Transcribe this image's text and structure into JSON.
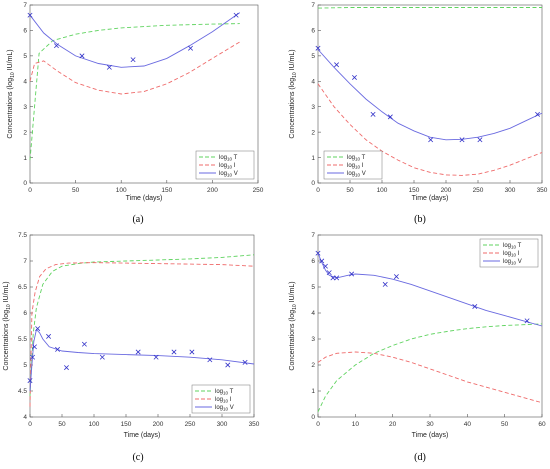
{
  "figure": {
    "panel_labels": [
      "(a)",
      "(b)",
      "(c)",
      "(d)"
    ]
  },
  "chart_data": [
    {
      "type": "line",
      "panel": "(a)",
      "xlabel": "Time (days)",
      "ylabel": "Concentrations (log10 IU/mL)",
      "ylabel_main": "Concentrations (log",
      "ylabel_sub": "10",
      "ylabel_tail": " IU/mL)",
      "xlim": [
        0,
        250
      ],
      "ylim": [
        0,
        7
      ],
      "xticks": [
        0,
        50,
        100,
        150,
        200,
        250
      ],
      "yticks": [
        0,
        1,
        2,
        3,
        4,
        5,
        6,
        7
      ],
      "legend_position": "bottom-right",
      "series": [
        {
          "name": "log10 T",
          "name_main": "log",
          "name_sub": "10",
          "name_tail": " T",
          "style": "dashed",
          "color": "#5fd35f",
          "x": [
            0,
            10,
            25,
            50,
            75,
            100,
            150,
            200,
            230
          ],
          "y": [
            0.9,
            5.1,
            5.6,
            5.85,
            6.0,
            6.1,
            6.2,
            6.25,
            6.27
          ]
        },
        {
          "name": "log10 I",
          "name_main": "log",
          "name_sub": "10",
          "name_tail": " I",
          "style": "dashed",
          "color": "#ef6b6b",
          "x": [
            0,
            5,
            15,
            30,
            50,
            75,
            100,
            125,
            150,
            175,
            200,
            230
          ],
          "y": [
            4.0,
            4.7,
            4.8,
            4.4,
            3.95,
            3.65,
            3.5,
            3.6,
            3.9,
            4.35,
            4.9,
            5.55
          ]
        },
        {
          "name": "log10 V",
          "name_main": "log",
          "name_sub": "10",
          "name_tail": " V",
          "style": "solid",
          "color": "#6a6ae0",
          "x": [
            0,
            15,
            30,
            50,
            75,
            100,
            125,
            150,
            175,
            200,
            230
          ],
          "y": [
            6.6,
            5.9,
            5.45,
            5.0,
            4.7,
            4.55,
            4.6,
            4.9,
            5.4,
            5.95,
            6.7
          ]
        },
        {
          "name": "data",
          "style": "marker",
          "color": "#3232c8",
          "x": [
            0,
            29,
            57,
            87,
            113,
            176,
            226
          ],
          "y": [
            6.6,
            5.4,
            5.0,
            4.55,
            4.85,
            5.3,
            6.6
          ]
        }
      ]
    },
    {
      "type": "line",
      "panel": "(b)",
      "xlabel": "Time (days)",
      "ylabel": "Concentrations (log10 IU/mL)",
      "ylabel_main": "Concentrations (log",
      "ylabel_sub": "10",
      "ylabel_tail": " IU/mL)",
      "xlim": [
        0,
        350
      ],
      "ylim": [
        0,
        7
      ],
      "xticks": [
        0,
        50,
        100,
        150,
        200,
        250,
        300,
        350
      ],
      "yticks": [
        0,
        1,
        2,
        3,
        4,
        5,
        6,
        7
      ],
      "legend_position": "bottom-left",
      "series": [
        {
          "name": "log10 T",
          "name_main": "log",
          "name_sub": "10",
          "name_tail": " T",
          "style": "dashed",
          "color": "#5fd35f",
          "x": [
            0,
            50,
            100,
            150,
            200,
            250,
            300,
            350
          ],
          "y": [
            6.88,
            6.9,
            6.9,
            6.9,
            6.9,
            6.9,
            6.9,
            6.9
          ]
        },
        {
          "name": "log10 I",
          "name_main": "log",
          "name_sub": "10",
          "name_tail": " I",
          "style": "dashed",
          "color": "#ef6b6b",
          "x": [
            0,
            25,
            50,
            75,
            100,
            125,
            150,
            175,
            200,
            225,
            250,
            275,
            300,
            325,
            350
          ],
          "y": [
            3.9,
            3.0,
            2.3,
            1.7,
            1.25,
            0.9,
            0.6,
            0.42,
            0.32,
            0.3,
            0.35,
            0.5,
            0.7,
            0.95,
            1.2
          ]
        },
        {
          "name": "log10 V",
          "name_main": "log",
          "name_sub": "10",
          "name_tail": " V",
          "style": "solid",
          "color": "#6a6ae0",
          "x": [
            0,
            25,
            50,
            75,
            100,
            125,
            150,
            175,
            200,
            225,
            250,
            275,
            300,
            325,
            350
          ],
          "y": [
            5.25,
            4.55,
            3.9,
            3.3,
            2.8,
            2.35,
            2.05,
            1.8,
            1.7,
            1.72,
            1.8,
            1.95,
            2.15,
            2.45,
            2.75
          ]
        },
        {
          "name": "data",
          "style": "marker",
          "color": "#3232c8",
          "x": [
            0,
            29,
            57,
            86,
            113,
            176,
            225,
            253,
            343
          ],
          "y": [
            5.3,
            4.65,
            4.15,
            2.7,
            2.6,
            1.7,
            1.7,
            1.7,
            2.7
          ]
        }
      ]
    },
    {
      "type": "line",
      "panel": "(c)",
      "xlabel": "Time (days)",
      "ylabel": "Concentrations (log10 IU/mL)",
      "ylabel_main": "Concentrations (log",
      "ylabel_sub": "10",
      "ylabel_tail": " IU/mL)",
      "xlim": [
        0,
        350
      ],
      "ylim": [
        4,
        7.5
      ],
      "xticks": [
        0,
        50,
        100,
        150,
        200,
        250,
        300,
        350
      ],
      "yticks": [
        4,
        4.5,
        5,
        5.5,
        6,
        6.5,
        7,
        7.5
      ],
      "legend_position": "bottom-right",
      "series": [
        {
          "name": "log10 T",
          "name_main": "log",
          "name_sub": "10",
          "name_tail": " T",
          "style": "dashed",
          "color": "#5fd35f",
          "x": [
            0,
            5,
            10,
            20,
            35,
            50,
            75,
            100,
            150,
            200,
            250,
            300,
            350
          ],
          "y": [
            4.4,
            5.6,
            6.1,
            6.55,
            6.8,
            6.9,
            6.95,
            6.98,
            7.0,
            7.02,
            7.04,
            7.07,
            7.12
          ]
        },
        {
          "name": "log10 I",
          "name_main": "log",
          "name_sub": "10",
          "name_tail": " I",
          "style": "dashed",
          "color": "#ef6b6b",
          "x": [
            0,
            3,
            8,
            15,
            25,
            40,
            60,
            100,
            150,
            200,
            250,
            300,
            350
          ],
          "y": [
            4.2,
            6.0,
            6.4,
            6.7,
            6.85,
            6.93,
            6.96,
            6.97,
            6.96,
            6.95,
            6.94,
            6.93,
            6.9
          ]
        },
        {
          "name": "log10 V",
          "name_main": "log",
          "name_sub": "10",
          "name_tail": " V",
          "style": "solid",
          "color": "#6a6ae0",
          "x": [
            0,
            3,
            6,
            10,
            15,
            20,
            30,
            50,
            75,
            100,
            150,
            200,
            250,
            300,
            350
          ],
          "y": [
            4.5,
            5.0,
            5.45,
            5.68,
            5.62,
            5.5,
            5.35,
            5.27,
            5.24,
            5.22,
            5.2,
            5.18,
            5.15,
            5.1,
            5.02
          ]
        },
        {
          "name": "data",
          "style": "marker",
          "color": "#3232c8",
          "x": [
            0,
            4,
            7,
            12,
            29,
            43,
            57,
            85,
            113,
            169,
            197,
            225,
            253,
            281,
            309,
            336
          ],
          "y": [
            4.7,
            5.15,
            5.35,
            5.7,
            5.55,
            5.3,
            4.95,
            5.4,
            5.15,
            5.25,
            5.15,
            5.25,
            5.25,
            5.1,
            5.0,
            5.05
          ]
        }
      ]
    },
    {
      "type": "line",
      "panel": "(d)",
      "xlabel": "Time (days)",
      "ylabel": "Concentrations (log10 IU/mL)",
      "ylabel_main": "Concentrations (log",
      "ylabel_sub": "10",
      "ylabel_tail": " IU/mL)",
      "xlim": [
        0,
        60
      ],
      "ylim": [
        0,
        7
      ],
      "xticks": [
        0,
        10,
        20,
        30,
        40,
        50,
        60
      ],
      "yticks": [
        0,
        1,
        2,
        3,
        4,
        5,
        6,
        7
      ],
      "legend_position": "top-right",
      "series": [
        {
          "name": "log10 T",
          "name_main": "log",
          "name_sub": "10",
          "name_tail": " T",
          "style": "dashed",
          "color": "#5fd35f",
          "x": [
            0,
            2,
            5,
            10,
            15,
            20,
            25,
            30,
            35,
            40,
            45,
            50,
            55,
            60
          ],
          "y": [
            0.2,
            0.8,
            1.4,
            2.0,
            2.45,
            2.75,
            3.0,
            3.18,
            3.3,
            3.4,
            3.47,
            3.52,
            3.55,
            3.58
          ]
        },
        {
          "name": "log10 I",
          "name_main": "log",
          "name_sub": "10",
          "name_tail": " I",
          "style": "dashed",
          "color": "#ef6b6b",
          "x": [
            0,
            2,
            5,
            10,
            15,
            20,
            25,
            30,
            35,
            40,
            45,
            50,
            55,
            60
          ],
          "y": [
            2.1,
            2.3,
            2.45,
            2.5,
            2.45,
            2.3,
            2.1,
            1.85,
            1.6,
            1.35,
            1.15,
            0.95,
            0.75,
            0.55
          ]
        },
        {
          "name": "log10 V",
          "name_main": "log",
          "name_sub": "10",
          "name_tail": " V",
          "style": "solid",
          "color": "#6a6ae0",
          "x": [
            0,
            1,
            2,
            3,
            5,
            8,
            10,
            15,
            20,
            25,
            30,
            35,
            40,
            45,
            50,
            55,
            60
          ],
          "y": [
            6.3,
            5.95,
            5.65,
            5.45,
            5.35,
            5.45,
            5.5,
            5.45,
            5.3,
            5.1,
            4.85,
            4.6,
            4.35,
            4.1,
            3.9,
            3.7,
            3.5
          ]
        },
        {
          "name": "data",
          "style": "marker",
          "color": "#3232c8",
          "x": [
            0,
            1,
            2,
            3,
            4,
            5,
            9,
            18,
            21,
            42,
            56
          ],
          "y": [
            6.3,
            6.0,
            5.8,
            5.55,
            5.35,
            5.35,
            5.5,
            5.1,
            5.4,
            4.25,
            3.7
          ]
        }
      ]
    }
  ]
}
